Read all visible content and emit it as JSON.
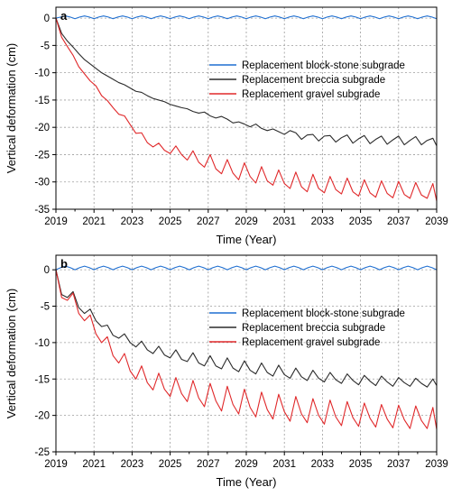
{
  "chart_data": [
    {
      "type": "line",
      "panel_label": "a",
      "xlabel": "Time (Year)",
      "ylabel": "Vertical deformation (cm)",
      "xlim": [
        2019,
        2039
      ],
      "ylim": [
        -35,
        2
      ],
      "xticks": [
        2019,
        2021,
        2023,
        2025,
        2027,
        2029,
        2031,
        2033,
        2035,
        2037,
        2039
      ],
      "yticks": [
        0,
        -5,
        -10,
        -15,
        -20,
        -25,
        -30,
        -35
      ],
      "grid": true,
      "legend_position": "upper-right",
      "series": [
        {
          "name": "Replacement block-stone subgrade",
          "color": "#1f6fd1",
          "x": [
            2019.0,
            2019.25,
            2019.5,
            2019.75,
            2020.0,
            2020.25,
            2020.5,
            2020.75,
            2021.0,
            2021.25,
            2021.5,
            2021.75,
            2022.0,
            2022.25,
            2022.5,
            2022.75,
            2023.0,
            2023.25,
            2023.5,
            2023.75,
            2024.0,
            2024.25,
            2024.5,
            2024.75,
            2025.0,
            2025.25,
            2025.5,
            2025.75,
            2026.0,
            2026.25,
            2026.5,
            2026.75,
            2027.0,
            2027.25,
            2027.5,
            2027.75,
            2028.0,
            2028.25,
            2028.5,
            2028.75,
            2029.0,
            2029.25,
            2029.5,
            2029.75,
            2030.0,
            2030.25,
            2030.5,
            2030.75,
            2031.0,
            2031.25,
            2031.5,
            2031.75,
            2032.0,
            2032.25,
            2032.5,
            2032.75,
            2033.0,
            2033.25,
            2033.5,
            2033.75,
            2034.0,
            2034.25,
            2034.5,
            2034.75,
            2035.0,
            2035.25,
            2035.5,
            2035.75,
            2036.0,
            2036.25,
            2036.5,
            2036.75,
            2037.0,
            2037.25,
            2037.5,
            2037.75,
            2038.0,
            2038.25,
            2038.5,
            2038.75,
            2039.0
          ],
          "y": [
            0.0,
            0.2,
            0.4,
            0.2,
            -0.1,
            0.2,
            0.4,
            0.2,
            -0.1,
            0.2,
            0.4,
            0.2,
            -0.1,
            0.2,
            0.4,
            0.2,
            -0.1,
            0.2,
            0.4,
            0.2,
            -0.1,
            0.2,
            0.4,
            0.2,
            -0.1,
            0.2,
            0.4,
            0.2,
            -0.1,
            0.2,
            0.4,
            0.2,
            -0.1,
            0.2,
            0.4,
            0.2,
            -0.1,
            0.2,
            0.4,
            0.2,
            -0.1,
            0.2,
            0.4,
            0.2,
            -0.1,
            0.2,
            0.4,
            0.2,
            -0.1,
            0.2,
            0.4,
            0.2,
            -0.1,
            0.2,
            0.4,
            0.2,
            -0.1,
            0.2,
            0.4,
            0.2,
            -0.1,
            0.2,
            0.4,
            0.2,
            -0.1,
            0.2,
            0.4,
            0.2,
            -0.1,
            0.2,
            0.4,
            0.2,
            -0.1,
            0.2,
            0.4,
            0.2,
            -0.1,
            0.2,
            0.4,
            0.2,
            -0.1
          ]
        },
        {
          "name": "Replacement breccia subgrade",
          "color": "#2b2b2b",
          "x": [
            2019.0,
            2019.3,
            2019.6,
            2019.9,
            2020.2,
            2020.5,
            2020.8,
            2021.1,
            2021.4,
            2021.7,
            2022.0,
            2022.3,
            2022.6,
            2022.9,
            2023.2,
            2023.5,
            2023.8,
            2024.1,
            2024.4,
            2024.7,
            2025.0,
            2025.3,
            2025.6,
            2025.9,
            2026.2,
            2026.5,
            2026.8,
            2027.1,
            2027.4,
            2027.7,
            2028.0,
            2028.3,
            2028.6,
            2028.9,
            2029.2,
            2029.5,
            2029.8,
            2030.1,
            2030.4,
            2030.7,
            2031.0,
            2031.3,
            2031.6,
            2031.9,
            2032.2,
            2032.5,
            2032.8,
            2033.1,
            2033.4,
            2033.7,
            2034.0,
            2034.3,
            2034.6,
            2034.9,
            2035.2,
            2035.5,
            2035.8,
            2036.1,
            2036.4,
            2036.7,
            2037.0,
            2037.3,
            2037.6,
            2037.9,
            2038.2,
            2038.5,
            2038.8,
            2039.0
          ],
          "y": [
            0.0,
            -2.8,
            -4.2,
            -5.3,
            -6.5,
            -7.6,
            -8.4,
            -9.2,
            -10.0,
            -10.6,
            -11.2,
            -11.8,
            -12.2,
            -12.8,
            -13.4,
            -13.6,
            -14.2,
            -14.7,
            -15.0,
            -15.3,
            -15.8,
            -16.1,
            -16.4,
            -16.6,
            -17.1,
            -17.4,
            -17.2,
            -17.9,
            -18.3,
            -18.0,
            -18.5,
            -19.2,
            -19.0,
            -19.4,
            -19.9,
            -19.4,
            -20.2,
            -20.6,
            -20.3,
            -20.8,
            -21.3,
            -20.6,
            -21.0,
            -22.2,
            -21.4,
            -21.3,
            -22.5,
            -21.6,
            -21.5,
            -22.7,
            -21.9,
            -21.4,
            -22.9,
            -22.1,
            -21.5,
            -23.0,
            -22.2,
            -21.6,
            -23.1,
            -22.3,
            -21.6,
            -23.2,
            -22.4,
            -21.7,
            -23.2,
            -22.4,
            -22.0,
            -23.4
          ]
        },
        {
          "name": "Replacement gravel subgrade",
          "color": "#e0282a",
          "x": [
            2019.0,
            2019.3,
            2019.6,
            2019.9,
            2020.2,
            2020.5,
            2020.8,
            2021.1,
            2021.4,
            2021.7,
            2022.0,
            2022.3,
            2022.6,
            2022.9,
            2023.2,
            2023.5,
            2023.8,
            2024.1,
            2024.4,
            2024.7,
            2025.0,
            2025.3,
            2025.6,
            2025.9,
            2026.2,
            2026.5,
            2026.8,
            2027.1,
            2027.4,
            2027.7,
            2028.0,
            2028.3,
            2028.6,
            2028.9,
            2029.2,
            2029.5,
            2029.8,
            2030.1,
            2030.4,
            2030.7,
            2031.0,
            2031.3,
            2031.6,
            2031.9,
            2032.2,
            2032.5,
            2032.8,
            2033.1,
            2033.4,
            2033.7,
            2034.0,
            2034.3,
            2034.6,
            2034.9,
            2035.2,
            2035.5,
            2035.8,
            2036.1,
            2036.4,
            2036.7,
            2037.0,
            2037.3,
            2037.6,
            2037.9,
            2038.2,
            2038.5,
            2038.8,
            2039.0
          ],
          "y": [
            0.0,
            -3.5,
            -5.2,
            -6.8,
            -8.9,
            -10.2,
            -11.5,
            -12.4,
            -14.2,
            -15.1,
            -16.4,
            -17.6,
            -17.9,
            -19.5,
            -21.1,
            -21.0,
            -22.8,
            -23.6,
            -22.9,
            -24.2,
            -24.8,
            -23.4,
            -25.0,
            -26.0,
            -24.3,
            -26.4,
            -27.3,
            -25.0,
            -27.6,
            -28.5,
            -25.9,
            -28.4,
            -29.6,
            -26.5,
            -29.0,
            -30.2,
            -27.2,
            -29.8,
            -30.6,
            -27.8,
            -30.3,
            -31.2,
            -28.2,
            -30.9,
            -31.8,
            -28.6,
            -31.2,
            -32.0,
            -29.0,
            -31.4,
            -32.2,
            -29.3,
            -31.8,
            -32.6,
            -29.6,
            -32.0,
            -32.8,
            -29.8,
            -32.1,
            -32.9,
            -29.9,
            -32.3,
            -33.0,
            -30.1,
            -32.4,
            -33.0,
            -30.3,
            -33.5
          ]
        }
      ]
    },
    {
      "type": "line",
      "panel_label": "b",
      "xlabel": "Time (Year)",
      "ylabel": "Vertical deformation (cm)",
      "xlim": [
        2019,
        2039
      ],
      "ylim": [
        -25,
        2
      ],
      "xticks": [
        2019,
        2021,
        2023,
        2025,
        2027,
        2029,
        2031,
        2033,
        2035,
        2037,
        2039
      ],
      "yticks": [
        0,
        -5,
        -10,
        -15,
        -20,
        -25
      ],
      "grid": true,
      "legend_position": "upper-right",
      "series": [
        {
          "name": "Replacement block-stone subgrade",
          "color": "#1f6fd1",
          "x": [
            2019.0,
            2019.25,
            2019.5,
            2019.75,
            2020.0,
            2020.25,
            2020.5,
            2020.75,
            2021.0,
            2021.25,
            2021.5,
            2021.75,
            2022.0,
            2022.25,
            2022.5,
            2022.75,
            2023.0,
            2023.25,
            2023.5,
            2023.75,
            2024.0,
            2024.25,
            2024.5,
            2024.75,
            2025.0,
            2025.25,
            2025.5,
            2025.75,
            2026.0,
            2026.25,
            2026.5,
            2026.75,
            2027.0,
            2027.25,
            2027.5,
            2027.75,
            2028.0,
            2028.25,
            2028.5,
            2028.75,
            2029.0,
            2029.25,
            2029.5,
            2029.75,
            2030.0,
            2030.25,
            2030.5,
            2030.75,
            2031.0,
            2031.25,
            2031.5,
            2031.75,
            2032.0,
            2032.25,
            2032.5,
            2032.75,
            2033.0,
            2033.25,
            2033.5,
            2033.75,
            2034.0,
            2034.25,
            2034.5,
            2034.75,
            2035.0,
            2035.25,
            2035.5,
            2035.75,
            2036.0,
            2036.25,
            2036.5,
            2036.75,
            2037.0,
            2037.25,
            2037.5,
            2037.75,
            2038.0,
            2038.25,
            2038.5,
            2038.75,
            2039.0
          ],
          "y": [
            0.0,
            0.3,
            0.5,
            0.3,
            0.0,
            0.3,
            0.5,
            0.3,
            0.0,
            0.3,
            0.5,
            0.3,
            0.0,
            0.3,
            0.5,
            0.3,
            0.0,
            0.3,
            0.5,
            0.3,
            0.0,
            0.3,
            0.5,
            0.3,
            0.0,
            0.3,
            0.5,
            0.3,
            0.0,
            0.3,
            0.5,
            0.3,
            0.0,
            0.3,
            0.5,
            0.3,
            0.0,
            0.3,
            0.5,
            0.3,
            0.0,
            0.3,
            0.5,
            0.3,
            0.0,
            0.3,
            0.5,
            0.3,
            0.0,
            0.3,
            0.5,
            0.3,
            0.0,
            0.3,
            0.5,
            0.3,
            0.0,
            0.3,
            0.5,
            0.3,
            0.0,
            0.3,
            0.5,
            0.3,
            0.0,
            0.3,
            0.5,
            0.3,
            0.0,
            0.3,
            0.5,
            0.3,
            0.0,
            0.3,
            0.5,
            0.3,
            0.0,
            0.3,
            0.5,
            0.3,
            0.0
          ]
        },
        {
          "name": "Replacement breccia subgrade",
          "color": "#2b2b2b",
          "x": [
            2019.0,
            2019.3,
            2019.6,
            2019.9,
            2020.2,
            2020.5,
            2020.8,
            2021.1,
            2021.4,
            2021.7,
            2022.0,
            2022.3,
            2022.6,
            2022.9,
            2023.2,
            2023.5,
            2023.8,
            2024.1,
            2024.4,
            2024.7,
            2025.0,
            2025.3,
            2025.6,
            2025.9,
            2026.2,
            2026.5,
            2026.8,
            2027.1,
            2027.4,
            2027.7,
            2028.0,
            2028.3,
            2028.6,
            2028.9,
            2029.2,
            2029.5,
            2029.8,
            2030.1,
            2030.4,
            2030.7,
            2031.0,
            2031.3,
            2031.6,
            2031.9,
            2032.2,
            2032.5,
            2032.8,
            2033.1,
            2033.4,
            2033.7,
            2034.0,
            2034.3,
            2034.6,
            2034.9,
            2035.2,
            2035.5,
            2035.8,
            2036.1,
            2036.4,
            2036.7,
            2037.0,
            2037.3,
            2037.6,
            2037.9,
            2038.2,
            2038.5,
            2038.8,
            2039.0
          ],
          "y": [
            0.0,
            -3.4,
            -3.8,
            -3.0,
            -5.2,
            -6.0,
            -5.4,
            -7.0,
            -7.8,
            -7.6,
            -9.0,
            -9.4,
            -8.8,
            -10.0,
            -10.6,
            -9.8,
            -11.0,
            -11.5,
            -10.5,
            -11.7,
            -12.1,
            -11.0,
            -12.3,
            -12.6,
            -11.4,
            -12.8,
            -13.2,
            -11.8,
            -13.2,
            -13.6,
            -12.1,
            -13.5,
            -14.0,
            -12.5,
            -13.8,
            -14.3,
            -12.8,
            -14.1,
            -14.6,
            -13.1,
            -14.4,
            -14.9,
            -13.5,
            -14.7,
            -15.2,
            -13.8,
            -14.9,
            -15.4,
            -14.1,
            -15.1,
            -15.6,
            -14.3,
            -15.2,
            -15.8,
            -14.5,
            -15.3,
            -15.9,
            -14.6,
            -15.4,
            -16.0,
            -14.8,
            -15.5,
            -16.0,
            -14.9,
            -15.6,
            -16.1,
            -15.0,
            -15.9
          ]
        },
        {
          "name": "Replacement gravel subgrade",
          "color": "#e0282a",
          "x": [
            2019.0,
            2019.3,
            2019.6,
            2019.9,
            2020.2,
            2020.5,
            2020.8,
            2021.1,
            2021.4,
            2021.7,
            2022.0,
            2022.3,
            2022.6,
            2022.9,
            2023.2,
            2023.5,
            2023.8,
            2024.1,
            2024.4,
            2024.7,
            2025.0,
            2025.3,
            2025.6,
            2025.9,
            2026.2,
            2026.5,
            2026.8,
            2027.1,
            2027.4,
            2027.7,
            2028.0,
            2028.3,
            2028.6,
            2028.9,
            2029.2,
            2029.5,
            2029.8,
            2030.1,
            2030.4,
            2030.7,
            2031.0,
            2031.3,
            2031.6,
            2031.9,
            2032.2,
            2032.5,
            2032.8,
            2033.1,
            2033.4,
            2033.7,
            2034.0,
            2034.3,
            2034.6,
            2034.9,
            2035.2,
            2035.5,
            2035.8,
            2036.1,
            2036.4,
            2036.7,
            2037.0,
            2037.3,
            2037.6,
            2037.9,
            2038.2,
            2038.5,
            2038.8,
            2039.0
          ],
          "y": [
            0.0,
            -3.8,
            -4.2,
            -3.2,
            -6.0,
            -7.0,
            -6.2,
            -8.8,
            -10.0,
            -9.2,
            -11.8,
            -12.8,
            -11.5,
            -13.9,
            -15.0,
            -13.2,
            -15.5,
            -16.5,
            -14.2,
            -16.4,
            -17.4,
            -14.8,
            -17.0,
            -18.1,
            -15.2,
            -17.6,
            -18.8,
            -15.6,
            -18.0,
            -19.4,
            -16.0,
            -18.5,
            -19.8,
            -16.4,
            -18.9,
            -20.2,
            -16.8,
            -19.2,
            -20.5,
            -17.1,
            -19.5,
            -20.8,
            -17.4,
            -19.8,
            -21.0,
            -17.7,
            -20.0,
            -21.2,
            -17.9,
            -20.2,
            -21.4,
            -18.1,
            -20.3,
            -21.5,
            -18.3,
            -20.4,
            -21.6,
            -18.5,
            -20.5,
            -21.7,
            -18.6,
            -20.6,
            -21.8,
            -18.7,
            -20.7,
            -21.8,
            -18.9,
            -21.9
          ]
        }
      ]
    }
  ]
}
